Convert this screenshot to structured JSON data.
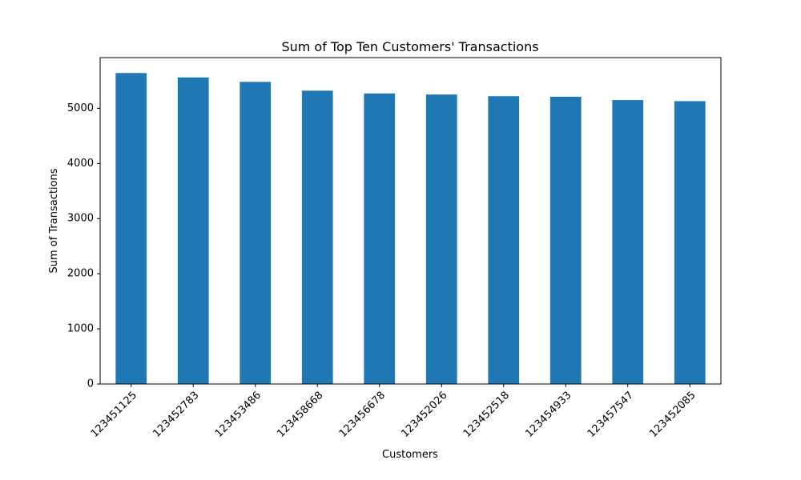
{
  "chart_data": {
    "type": "bar",
    "title": "Sum of Top Ten Customers' Transactions",
    "xlabel": "Customers",
    "ylabel": "Sum of Transactions",
    "categories": [
      "123451125",
      "123452783",
      "123453486",
      "123458668",
      "123456678",
      "123452026",
      "123452518",
      "123454933",
      "123457547",
      "123452085"
    ],
    "values": [
      5640,
      5560,
      5480,
      5320,
      5270,
      5250,
      5220,
      5210,
      5150,
      5130
    ],
    "ylim": [
      0,
      5920
    ],
    "yticks": [
      0,
      1000,
      2000,
      3000,
      4000,
      5000
    ],
    "bar_color": "#1f77b4",
    "grid": false,
    "legend": "none"
  }
}
